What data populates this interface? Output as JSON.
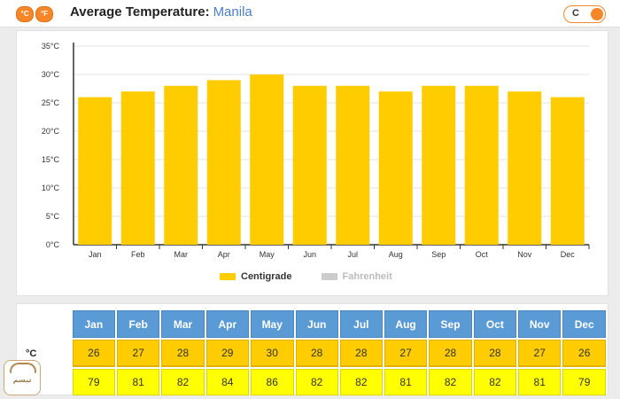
{
  "header": {
    "unit_badges": [
      "°C",
      "°F"
    ],
    "title_prefix": "Average Temperature:",
    "city": "Manila",
    "toggle_label": "C"
  },
  "colors": {
    "centigrade": "#ffcc00",
    "fahrenheit": "#cccccc",
    "table_header": "#5b9bd5",
    "celsius_row": "#ffcc00",
    "fahrenheit_row": "#ffff00",
    "accent": "#f5862a"
  },
  "chart_data": {
    "type": "bar",
    "categories": [
      "Jan",
      "Feb",
      "Mar",
      "Apr",
      "May",
      "Jun",
      "Jul",
      "Aug",
      "Sep",
      "Oct",
      "Nov",
      "Dec"
    ],
    "series": [
      {
        "name": "Centigrade",
        "values": [
          26,
          27,
          28,
          29,
          30,
          28,
          28,
          27,
          28,
          28,
          27,
          26
        ],
        "visible": true
      },
      {
        "name": "Fahrenheit",
        "values": [
          79,
          81,
          82,
          84,
          86,
          82,
          82,
          81,
          82,
          82,
          81,
          79
        ],
        "visible": false
      }
    ],
    "ylim": [
      0,
      35
    ],
    "yticks": [
      "0°C",
      "5°C",
      "10°C",
      "15°C",
      "20°C",
      "25°C",
      "30°C",
      "35°C"
    ],
    "grid": true,
    "legend_position": "bottom-center"
  },
  "table": {
    "months": [
      "Jan",
      "Feb",
      "Mar",
      "Apr",
      "May",
      "Jun",
      "Jul",
      "Aug",
      "Sep",
      "Oct",
      "Nov",
      "Dec"
    ],
    "celsius_label": "°C",
    "fahrenheit_label": "°F",
    "celsius": [
      "26",
      "27",
      "28",
      "29",
      "30",
      "28",
      "28",
      "27",
      "28",
      "28",
      "27",
      "26"
    ],
    "fahrenheit": [
      "79",
      "81",
      "82",
      "84",
      "86",
      "82",
      "82",
      "81",
      "82",
      "82",
      "81",
      "79"
    ]
  },
  "logo": {
    "word": "تبسم"
  }
}
